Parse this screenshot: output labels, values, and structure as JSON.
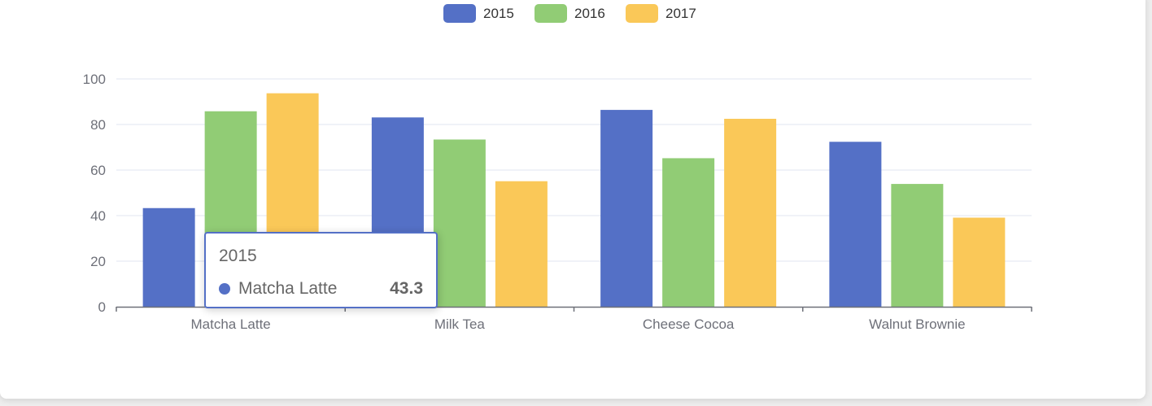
{
  "chart_data": {
    "type": "bar",
    "categories": [
      "Matcha Latte",
      "Milk Tea",
      "Cheese Cocoa",
      "Walnut Brownie"
    ],
    "series": [
      {
        "name": "2015",
        "values": [
          43.3,
          83.1,
          86.4,
          72.4
        ],
        "color": "#5470c6"
      },
      {
        "name": "2016",
        "values": [
          85.8,
          73.4,
          65.2,
          53.9
        ],
        "color": "#91cc75"
      },
      {
        "name": "2017",
        "values": [
          93.7,
          55.1,
          82.5,
          39.1
        ],
        "color": "#fac858"
      }
    ],
    "ylim": [
      0,
      100
    ],
    "yticks": [
      "0",
      "20",
      "40",
      "60",
      "80",
      "100"
    ],
    "grid": true,
    "legend_position": "top-center"
  },
  "tooltip": {
    "title": "2015",
    "name": "Matcha Latte",
    "value": "43.3",
    "color": "#5470c6"
  }
}
